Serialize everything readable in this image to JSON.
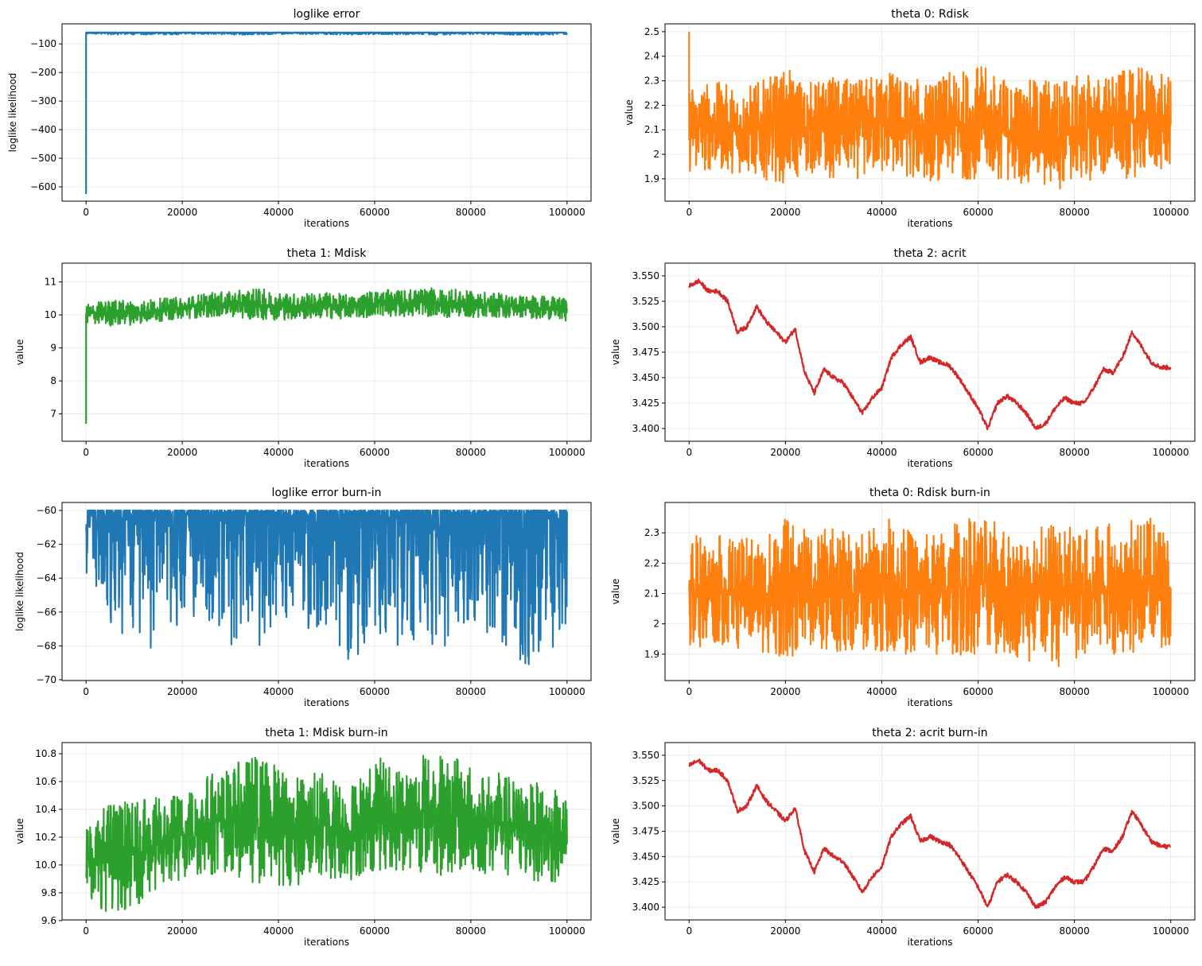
{
  "chart_data": [
    {
      "type": "line",
      "title": "loglike error",
      "xlabel": "iterations",
      "ylabel": "loglike likelihood",
      "color": "#1f77b4",
      "grid": true,
      "xlim": [
        -5000,
        105000
      ],
      "ylim": [
        -650,
        -30
      ],
      "xticks": [
        0,
        20000,
        40000,
        60000,
        80000,
        100000
      ],
      "yticks": [
        -600,
        -500,
        -400,
        -300,
        -200,
        -100
      ],
      "series": {
        "initial_value": -625,
        "x": [
          0,
          5000,
          10000,
          15000,
          20000,
          25000,
          30000,
          35000,
          40000,
          45000,
          50000,
          55000,
          60000,
          65000,
          70000,
          75000,
          80000,
          85000,
          90000,
          95000,
          100000
        ],
        "y_max": [
          -60,
          -60,
          -60,
          -60,
          -60,
          -60,
          -60,
          -60,
          -60,
          -60,
          -60,
          -60,
          -60,
          -60,
          -60,
          -60,
          -60,
          -60,
          -60,
          -60,
          -60
        ],
        "y_min": [
          -64.5,
          -67.5,
          -67.7,
          -68.5,
          -66.8,
          -66.5,
          -68.3,
          -68.0,
          -67.8,
          -67.0,
          -67.0,
          -69.6,
          -67.3,
          -68.0,
          -68.0,
          -68.0,
          -66.8,
          -67.5,
          -69.2,
          -69.0,
          -67.2
        ]
      }
    },
    {
      "type": "line",
      "title": "theta 0: Rdisk",
      "xlabel": "iterations",
      "ylabel": "value",
      "color": "#ff7f0e",
      "grid": true,
      "xlim": [
        -5000,
        105000
      ],
      "ylim": [
        1.809,
        2.532
      ],
      "xticks": [
        0,
        20000,
        40000,
        60000,
        80000,
        100000
      ],
      "yticks": [
        1.9,
        2.0,
        2.1,
        2.2,
        2.3,
        2.4,
        2.5
      ],
      "series": {
        "initial_value": 2.5,
        "x": [
          0,
          5000,
          10000,
          15000,
          20000,
          25000,
          30000,
          35000,
          40000,
          45000,
          50000,
          55000,
          60000,
          65000,
          70000,
          75000,
          80000,
          85000,
          90000,
          95000,
          100000
        ],
        "y_max": [
          2.3,
          2.3,
          2.28,
          2.3,
          2.35,
          2.3,
          2.32,
          2.3,
          2.36,
          2.32,
          2.3,
          2.34,
          2.37,
          2.32,
          2.3,
          2.33,
          2.32,
          2.33,
          2.34,
          2.36,
          2.31
        ],
        "y_min": [
          1.92,
          1.93,
          1.92,
          1.9,
          1.88,
          1.92,
          1.9,
          1.9,
          1.91,
          1.9,
          1.89,
          1.89,
          1.9,
          1.89,
          1.88,
          1.84,
          1.88,
          1.9,
          1.9,
          1.91,
          1.93
        ]
      }
    },
    {
      "type": "line",
      "title": "theta 1: Mdisk",
      "xlabel": "iterations",
      "ylabel": "value",
      "color": "#2ca02c",
      "grid": true,
      "xlim": [
        -5000,
        105000
      ],
      "ylim": [
        6.17,
        11.57
      ],
      "xticks": [
        0,
        20000,
        40000,
        60000,
        80000,
        100000
      ],
      "yticks": [
        7,
        8,
        9,
        10,
        11
      ],
      "series": {
        "initial_value": 6.7,
        "x": [
          0,
          5000,
          10000,
          15000,
          20000,
          25000,
          30000,
          35000,
          40000,
          45000,
          50000,
          55000,
          60000,
          65000,
          70000,
          75000,
          80000,
          85000,
          90000,
          95000,
          100000
        ],
        "y_max": [
          10.33,
          10.48,
          10.45,
          10.5,
          10.55,
          10.68,
          10.7,
          10.82,
          10.72,
          10.65,
          10.7,
          10.6,
          10.78,
          10.75,
          10.82,
          10.8,
          10.72,
          10.68,
          10.62,
          10.58,
          10.5
        ],
        "y_min": [
          9.75,
          9.65,
          9.7,
          9.8,
          9.88,
          9.92,
          9.95,
          9.85,
          9.85,
          9.85,
          9.88,
          9.88,
          9.95,
          9.95,
          9.95,
          9.92,
          9.92,
          9.92,
          9.9,
          9.88,
          9.82
        ]
      }
    },
    {
      "type": "line",
      "title": "theta 2: acrit",
      "xlabel": "iterations",
      "ylabel": "value",
      "color": "#d62728",
      "grid": true,
      "xlim": [
        -5000,
        105000
      ],
      "ylim": [
        3.3875,
        3.5625
      ],
      "xticks": [
        0,
        20000,
        40000,
        60000,
        80000,
        100000
      ],
      "yticks": [
        3.4,
        3.425,
        3.45,
        3.475,
        3.5,
        3.525,
        3.55
      ],
      "ytick_decimals": 3,
      "series": {
        "x": [
          0,
          2000,
          4000,
          6000,
          8000,
          10000,
          12000,
          14000,
          16000,
          18000,
          20000,
          22000,
          24000,
          26000,
          28000,
          30000,
          32000,
          34000,
          36000,
          38000,
          40000,
          42000,
          44000,
          46000,
          48000,
          50000,
          52000,
          54000,
          56000,
          58000,
          60000,
          62000,
          64000,
          66000,
          68000,
          70000,
          72000,
          74000,
          76000,
          78000,
          80000,
          82000,
          84000,
          86000,
          88000,
          90000,
          92000,
          94000,
          96000,
          98000,
          100000
        ],
        "y": [
          3.54,
          3.545,
          3.535,
          3.535,
          3.525,
          3.495,
          3.5,
          3.52,
          3.505,
          3.495,
          3.485,
          3.498,
          3.455,
          3.435,
          3.458,
          3.45,
          3.445,
          3.43,
          3.415,
          3.43,
          3.44,
          3.47,
          3.482,
          3.49,
          3.465,
          3.47,
          3.465,
          3.462,
          3.45,
          3.435,
          3.42,
          3.4,
          3.425,
          3.432,
          3.425,
          3.415,
          3.4,
          3.405,
          3.42,
          3.43,
          3.425,
          3.425,
          3.44,
          3.458,
          3.455,
          3.47,
          3.495,
          3.48,
          3.465,
          3.46,
          3.46
        ]
      }
    },
    {
      "type": "line",
      "title": "loglike error burn-in",
      "xlabel": "iterations",
      "ylabel": "loglike likelihood",
      "color": "#1f77b4",
      "grid": true,
      "xlim": [
        -5000,
        105000
      ],
      "ylim": [
        -70.05,
        -59.53
      ],
      "xticks": [
        0,
        20000,
        40000,
        60000,
        80000,
        100000
      ],
      "yticks": [
        -70,
        -68,
        -66,
        -64,
        -62,
        -60
      ],
      "series": {
        "x": [
          0,
          5000,
          10000,
          15000,
          20000,
          25000,
          30000,
          35000,
          40000,
          45000,
          50000,
          55000,
          60000,
          65000,
          70000,
          75000,
          80000,
          85000,
          90000,
          95000,
          100000
        ],
        "y_max": [
          -60,
          -60,
          -60,
          -60,
          -60,
          -60,
          -60,
          -60,
          -60,
          -60,
          -60,
          -60,
          -60,
          -60,
          -60,
          -60,
          -60,
          -60,
          -60,
          -60,
          -60
        ],
        "y_min": [
          -64.5,
          -67.5,
          -67.7,
          -68.5,
          -66.8,
          -66.5,
          -68.3,
          -68.0,
          -67.8,
          -67.0,
          -67.0,
          -69.6,
          -67.3,
          -68.0,
          -68.0,
          -68.0,
          -66.8,
          -67.5,
          -69.2,
          -69.0,
          -67.2
        ]
      }
    },
    {
      "type": "line",
      "title": "theta 0: Rdisk burn-in",
      "xlabel": "iterations",
      "ylabel": "value",
      "color": "#ff7f0e",
      "grid": true,
      "xlim": [
        -5000,
        105000
      ],
      "ylim": [
        1.813,
        2.4
      ],
      "xticks": [
        0,
        20000,
        40000,
        60000,
        80000,
        100000
      ],
      "yticks": [
        1.9,
        2.0,
        2.1,
        2.2,
        2.3
      ],
      "series": {
        "x": [
          0,
          5000,
          10000,
          15000,
          20000,
          25000,
          30000,
          35000,
          40000,
          45000,
          50000,
          55000,
          60000,
          65000,
          70000,
          75000,
          80000,
          85000,
          90000,
          95000,
          100000
        ],
        "y_max": [
          2.3,
          2.3,
          2.28,
          2.3,
          2.35,
          2.3,
          2.32,
          2.3,
          2.36,
          2.32,
          2.3,
          2.34,
          2.37,
          2.32,
          2.3,
          2.33,
          2.32,
          2.33,
          2.34,
          2.36,
          2.31
        ],
        "y_min": [
          1.92,
          1.93,
          1.92,
          1.9,
          1.88,
          1.92,
          1.9,
          1.9,
          1.91,
          1.9,
          1.89,
          1.89,
          1.9,
          1.89,
          1.88,
          1.84,
          1.88,
          1.9,
          1.9,
          1.91,
          1.93
        ]
      }
    },
    {
      "type": "line",
      "title": "theta 1: Mdisk burn-in",
      "xlabel": "iterations",
      "ylabel": "value",
      "color": "#2ca02c",
      "grid": true,
      "xlim": [
        -5000,
        105000
      ],
      "ylim": [
        9.605,
        10.88
      ],
      "xticks": [
        0,
        20000,
        40000,
        60000,
        80000,
        100000
      ],
      "yticks": [
        9.6,
        9.8,
        10.0,
        10.2,
        10.4,
        10.6,
        10.8
      ],
      "ytick_decimals": 1,
      "series": {
        "x": [
          0,
          5000,
          10000,
          15000,
          20000,
          25000,
          30000,
          35000,
          40000,
          45000,
          50000,
          55000,
          60000,
          65000,
          70000,
          75000,
          80000,
          85000,
          90000,
          95000,
          100000
        ],
        "y_max": [
          10.33,
          10.48,
          10.45,
          10.5,
          10.55,
          10.68,
          10.7,
          10.82,
          10.72,
          10.65,
          10.7,
          10.6,
          10.78,
          10.75,
          10.82,
          10.8,
          10.72,
          10.68,
          10.62,
          10.58,
          10.5
        ],
        "y_min": [
          9.75,
          9.65,
          9.7,
          9.8,
          9.88,
          9.92,
          9.95,
          9.85,
          9.85,
          9.85,
          9.88,
          9.88,
          9.95,
          9.95,
          9.95,
          9.92,
          9.92,
          9.92,
          9.9,
          9.88,
          9.82
        ]
      }
    },
    {
      "type": "line",
      "title": "theta 2: acrit burn-in",
      "xlabel": "iterations",
      "ylabel": "value",
      "color": "#d62728",
      "grid": true,
      "xlim": [
        -5000,
        105000
      ],
      "ylim": [
        3.3875,
        3.5625
      ],
      "xticks": [
        0,
        20000,
        40000,
        60000,
        80000,
        100000
      ],
      "yticks": [
        3.4,
        3.425,
        3.45,
        3.475,
        3.5,
        3.525,
        3.55
      ],
      "ytick_decimals": 3,
      "series": {
        "x": [
          0,
          2000,
          4000,
          6000,
          8000,
          10000,
          12000,
          14000,
          16000,
          18000,
          20000,
          22000,
          24000,
          26000,
          28000,
          30000,
          32000,
          34000,
          36000,
          38000,
          40000,
          42000,
          44000,
          46000,
          48000,
          50000,
          52000,
          54000,
          56000,
          58000,
          60000,
          62000,
          64000,
          66000,
          68000,
          70000,
          72000,
          74000,
          76000,
          78000,
          80000,
          82000,
          84000,
          86000,
          88000,
          90000,
          92000,
          94000,
          96000,
          98000,
          100000
        ],
        "y": [
          3.54,
          3.545,
          3.535,
          3.535,
          3.525,
          3.495,
          3.5,
          3.52,
          3.505,
          3.495,
          3.485,
          3.498,
          3.455,
          3.435,
          3.458,
          3.45,
          3.445,
          3.43,
          3.415,
          3.43,
          3.44,
          3.47,
          3.482,
          3.49,
          3.465,
          3.47,
          3.465,
          3.462,
          3.45,
          3.435,
          3.42,
          3.4,
          3.425,
          3.432,
          3.425,
          3.415,
          3.4,
          3.405,
          3.42,
          3.43,
          3.425,
          3.425,
          3.44,
          3.458,
          3.455,
          3.47,
          3.495,
          3.48,
          3.465,
          3.46,
          3.46
        ]
      }
    }
  ]
}
